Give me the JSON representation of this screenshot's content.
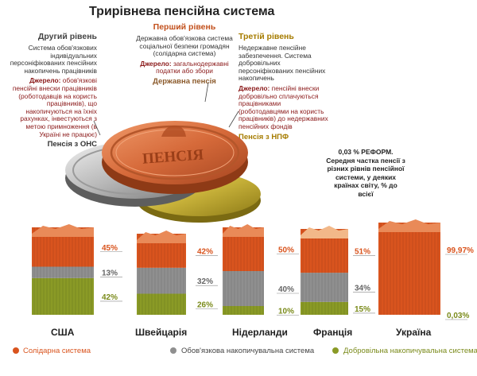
{
  "title": "Трирівнева пенсійна система",
  "levels": {
    "second": {
      "heading": "Другий рівень",
      "desc": "Система обов'язкових індивідуальних персоніфікованих пенсійних накопичень працівників",
      "source_label": "Джерело:",
      "source": "обов'язкові пенсійні внески працівників (роботодавців на користь працівників), що накопичуються на їхніх рахунках, інвестуються з метою примноження (в Україні не працює)",
      "pension": "Пенсія з ОНС"
    },
    "first": {
      "heading": "Перший рівень",
      "desc": "Державна обов'язкова система соціальної безпеки громадян (солідарна система)",
      "source_label": "Джерело:",
      "source": "загальнодержавні податки або збори",
      "pension": "Державна пенсія"
    },
    "third": {
      "heading": "Третій рівень",
      "desc": "Недержавне пенсійне забезпечення. Система добровільних персоніфікованих пенсійних накопичень",
      "source_label": "Джерело:",
      "source": "пенсійні внески добровільно сплачуються працівниками (роботодавцями на користь працівників) до недержавних пенсійних фондів",
      "pension": "Пенсія з НПФ"
    }
  },
  "coin_label": "ПЕНСІЯ",
  "note": "0,03 % РЕФОРМ. Середня частка пенсії з різних рівнів пенсійної системи, у деяких країнах світу, % до всієї",
  "colors": {
    "solidarity": "#d9541e",
    "mandatory": "#8f8f8f",
    "voluntary": "#8a9a26"
  },
  "chart_data": {
    "type": "bar",
    "stacked": true,
    "categories": [
      "США",
      "Швейцарія",
      "Нідерланди",
      "Франція",
      "Україна"
    ],
    "series": [
      {
        "name": "Солідарна система",
        "values": [
          45,
          42,
          50,
          51,
          99.97
        ],
        "labels": [
          "45%",
          "42%",
          "50%",
          "51%",
          "99,97%"
        ]
      },
      {
        "name": "Обов'язкова накопичувальна система",
        "values": [
          13,
          32,
          40,
          34,
          0
        ],
        "labels": [
          "13%",
          "32%",
          "40%",
          "34%",
          ""
        ]
      },
      {
        "name": "Добровільна накопичувальна система",
        "values": [
          42,
          26,
          10,
          15,
          0.03
        ],
        "labels": [
          "42%",
          "26%",
          "10%",
          "15%",
          "0,03%"
        ]
      }
    ]
  },
  "legend": [
    {
      "label": "Солідарна система",
      "color": "#d9541e"
    },
    {
      "label": "Обов'язкова накопичувальна система",
      "color": "#8f8f8f"
    },
    {
      "label": "Добровільна накопичувальна система",
      "color": "#8a9a26"
    }
  ]
}
